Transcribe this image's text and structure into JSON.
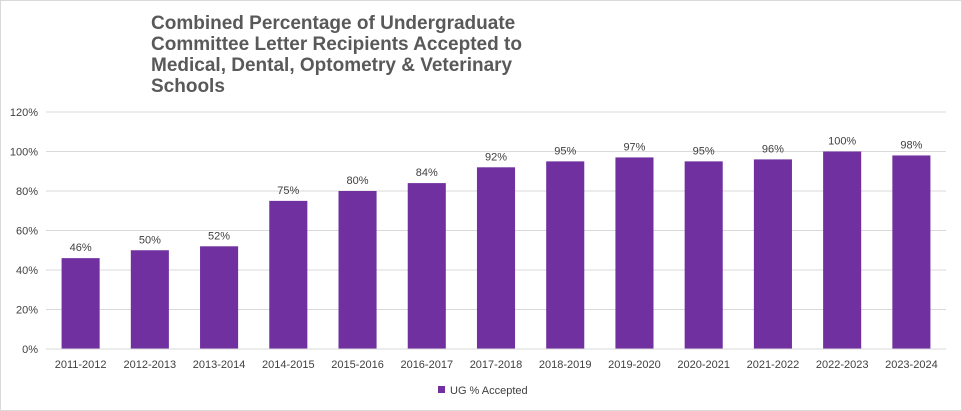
{
  "chart_data": {
    "type": "bar",
    "title": "Combined Percentage of Undergraduate Committee Letter Recipients Accepted to Medical, Dental, Optometry & Veterinary Schools",
    "categories": [
      "2011-2012",
      "2012-2013",
      "2013-2014",
      "2014-2015",
      "2015-2016",
      "2016-2017",
      "2017-2018",
      "2018-2019",
      "2019-2020",
      "2020-2021",
      "2021-2022",
      "2022-2023",
      "2023-2024"
    ],
    "series": [
      {
        "name": "UG % Accepted",
        "values": [
          46,
          50,
          52,
          75,
          80,
          84,
          92,
          95,
          97,
          95,
          96,
          100,
          98
        ],
        "labels": [
          "46%",
          "50%",
          "52%",
          "75%",
          "80%",
          "84%",
          "92%",
          "95%",
          "97%",
          "95%",
          "96%",
          "100%",
          "98%"
        ],
        "color": "#7030a0"
      }
    ],
    "ylim": [
      0,
      120
    ],
    "yticks": [
      0,
      20,
      40,
      60,
      80,
      100,
      120
    ],
    "ytick_labels": [
      "0%",
      "20%",
      "40%",
      "60%",
      "80%",
      "100%",
      "120%"
    ],
    "grid": true,
    "legend_position": "bottom"
  }
}
